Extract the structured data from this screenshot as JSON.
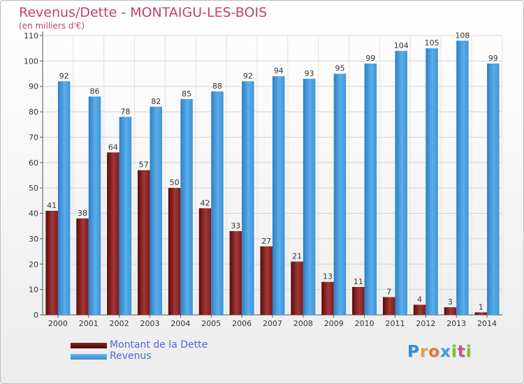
{
  "title": "Revenus/Dette - MONTAIGU-LES-BOIS",
  "subtitle": "(en milliers d'€)",
  "colors": {
    "title": "#c2416b",
    "dette_dark": "#5a0a0a",
    "dette_light": "#a23838",
    "revenus_dark": "#2e7fc4",
    "revenus_light": "#5aaeec"
  },
  "legend": [
    {
      "label": "Montant de la Dette",
      "color": "#6b1414"
    },
    {
      "label": "Revenus",
      "color": "#4a9ee0"
    }
  ],
  "logo": {
    "letters": [
      "P",
      "r",
      "o",
      "x",
      "i",
      "t",
      "i"
    ],
    "colors": [
      "#2e8fd6",
      "#e8a23a",
      "#e07a2e",
      "#3aa0e0",
      "#7abf3a",
      "#d64a8a",
      "#7abf3a"
    ]
  },
  "chart_data": {
    "type": "bar",
    "title": "Revenus/Dette - MONTAIGU-LES-BOIS",
    "subtitle": "(en milliers d'€)",
    "xlabel": "",
    "ylabel": "",
    "categories": [
      "2000",
      "2001",
      "2002",
      "2003",
      "2004",
      "2005",
      "2006",
      "2007",
      "2008",
      "2009",
      "2010",
      "2011",
      "2012",
      "2013",
      "2014"
    ],
    "series": [
      {
        "name": "Montant de la Dette",
        "values": [
          41,
          38,
          64,
          57,
          50,
          42,
          33,
          27,
          21,
          13,
          11,
          7,
          4,
          3,
          1
        ]
      },
      {
        "name": "Revenus",
        "values": [
          92,
          86,
          78,
          82,
          85,
          88,
          92,
          94,
          93,
          95,
          99,
          104,
          105,
          108,
          99
        ]
      }
    ],
    "ylim": [
      0,
      110
    ],
    "yticks": [
      0,
      10,
      20,
      30,
      40,
      50,
      60,
      70,
      80,
      90,
      100,
      110
    ],
    "grid": true,
    "legend_position": "bottom-left"
  }
}
